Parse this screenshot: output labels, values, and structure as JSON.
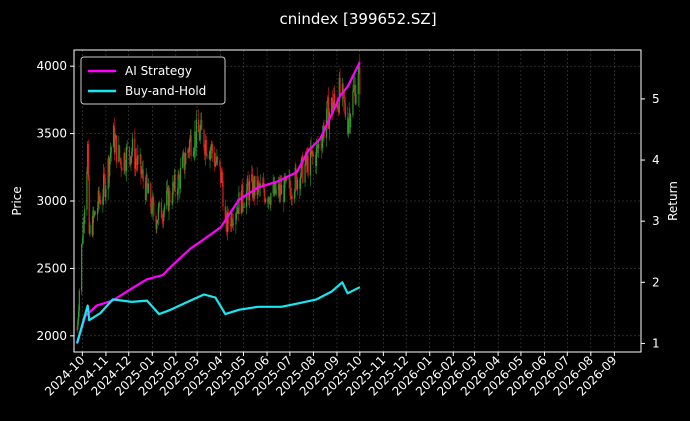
{
  "chart_data": {
    "type": "candlestick+line",
    "title": "cnindex [399652.SZ]",
    "xlabel": "",
    "ylabel_left": "Price",
    "ylabel_right": "Return",
    "ylim_left": [
      1880,
      4120
    ],
    "ylim_right": [
      0.86,
      5.8
    ],
    "y_ticks_left": [
      "2000",
      "2500",
      "3000",
      "3500",
      "4000"
    ],
    "y_ticks_right": [
      "1",
      "2",
      "3",
      "4",
      "5"
    ],
    "x_ticks": [
      "2024-10",
      "2024-11",
      "2024-12",
      "2025-01",
      "2025-02",
      "2025-03",
      "2025-04",
      "2025-05",
      "2025-06",
      "2025-07",
      "2025-08",
      "2025-09",
      "2025-10",
      "2025-11",
      "2025-12",
      "2026-01",
      "2026-02",
      "2026-03",
      "2026-04",
      "2026-05",
      "2026-06",
      "2026-07",
      "2026-08",
      "2026-09"
    ],
    "grid": true,
    "legend_position": "top-left",
    "up_color": "#2e9c2e",
    "down_color": "#e02020",
    "price_anchors": [
      {
        "date": "2024-09-24",
        "close": 2050
      },
      {
        "date": "2024-09-30",
        "close": 2650
      },
      {
        "date": "2024-10-08",
        "close": 3380
      },
      {
        "date": "2024-10-10",
        "close": 2750
      },
      {
        "date": "2024-10-20",
        "close": 2950
      },
      {
        "date": "2024-11-01",
        "close": 3150
      },
      {
        "date": "2024-11-10",
        "close": 3480
      },
      {
        "date": "2024-11-20",
        "close": 3300
      },
      {
        "date": "2024-12-05",
        "close": 3380
      },
      {
        "date": "2024-12-15",
        "close": 3250
      },
      {
        "date": "2025-01-05",
        "close": 2870
      },
      {
        "date": "2025-01-15",
        "close": 2950
      },
      {
        "date": "2025-02-05",
        "close": 3150
      },
      {
        "date": "2025-02-20",
        "close": 3450
      },
      {
        "date": "2025-03-05",
        "close": 3500
      },
      {
        "date": "2025-03-20",
        "close": 3380
      },
      {
        "date": "2025-04-03",
        "close": 3150
      },
      {
        "date": "2025-04-07",
        "close": 2800
      },
      {
        "date": "2025-04-20",
        "close": 2950
      },
      {
        "date": "2025-05-10",
        "close": 3100
      },
      {
        "date": "2025-06-10",
        "close": 3050
      },
      {
        "date": "2025-07-01",
        "close": 3100
      },
      {
        "date": "2025-07-20",
        "close": 3250
      },
      {
        "date": "2025-08-05",
        "close": 3350
      },
      {
        "date": "2025-08-20",
        "close": 3650
      },
      {
        "date": "2025-09-05",
        "close": 3800
      },
      {
        "date": "2025-09-15",
        "close": 3600
      },
      {
        "date": "2025-09-25",
        "close": 3850
      },
      {
        "date": "2025-10-01",
        "close": 3900
      }
    ],
    "series": [
      {
        "name": "AI Strategy",
        "color": "#ff00ff",
        "points": [
          {
            "date": "2024-09-24",
            "value": 1.0
          },
          {
            "date": "2024-10-05",
            "value": 1.45
          },
          {
            "date": "2024-10-20",
            "value": 1.62
          },
          {
            "date": "2024-11-10",
            "value": 1.7
          },
          {
            "date": "2024-12-05",
            "value": 1.9
          },
          {
            "date": "2024-12-25",
            "value": 2.05
          },
          {
            "date": "2025-01-15",
            "value": 2.12
          },
          {
            "date": "2025-01-25",
            "value": 2.25
          },
          {
            "date": "2025-02-20",
            "value": 2.55
          },
          {
            "date": "2025-03-15",
            "value": 2.75
          },
          {
            "date": "2025-04-01",
            "value": 2.9
          },
          {
            "date": "2025-04-25",
            "value": 3.35
          },
          {
            "date": "2025-05-20",
            "value": 3.55
          },
          {
            "date": "2025-06-15",
            "value": 3.65
          },
          {
            "date": "2025-07-10",
            "value": 3.8
          },
          {
            "date": "2025-07-25",
            "value": 4.15
          },
          {
            "date": "2025-08-10",
            "value": 4.35
          },
          {
            "date": "2025-08-25",
            "value": 4.75
          },
          {
            "date": "2025-09-05",
            "value": 5.05
          },
          {
            "date": "2025-09-15",
            "value": 5.2
          },
          {
            "date": "2025-10-01",
            "value": 5.6
          }
        ]
      },
      {
        "name": "Buy-and-Hold",
        "color": "#19e6f0",
        "points": [
          {
            "date": "2024-09-24",
            "value": 1.0
          },
          {
            "date": "2024-10-08",
            "value": 1.62
          },
          {
            "date": "2024-10-10",
            "value": 1.38
          },
          {
            "date": "2024-10-25",
            "value": 1.5
          },
          {
            "date": "2024-11-10",
            "value": 1.72
          },
          {
            "date": "2024-12-05",
            "value": 1.68
          },
          {
            "date": "2024-12-25",
            "value": 1.7
          },
          {
            "date": "2025-01-10",
            "value": 1.48
          },
          {
            "date": "2025-01-25",
            "value": 1.55
          },
          {
            "date": "2025-02-20",
            "value": 1.7
          },
          {
            "date": "2025-03-10",
            "value": 1.8
          },
          {
            "date": "2025-03-25",
            "value": 1.75
          },
          {
            "date": "2025-04-07",
            "value": 1.48
          },
          {
            "date": "2025-04-25",
            "value": 1.55
          },
          {
            "date": "2025-05-20",
            "value": 1.6
          },
          {
            "date": "2025-06-20",
            "value": 1.6
          },
          {
            "date": "2025-07-10",
            "value": 1.65
          },
          {
            "date": "2025-08-05",
            "value": 1.72
          },
          {
            "date": "2025-08-25",
            "value": 1.85
          },
          {
            "date": "2025-09-08",
            "value": 2.0
          },
          {
            "date": "2025-09-15",
            "value": 1.82
          },
          {
            "date": "2025-10-01",
            "value": 1.92
          }
        ]
      }
    ]
  }
}
